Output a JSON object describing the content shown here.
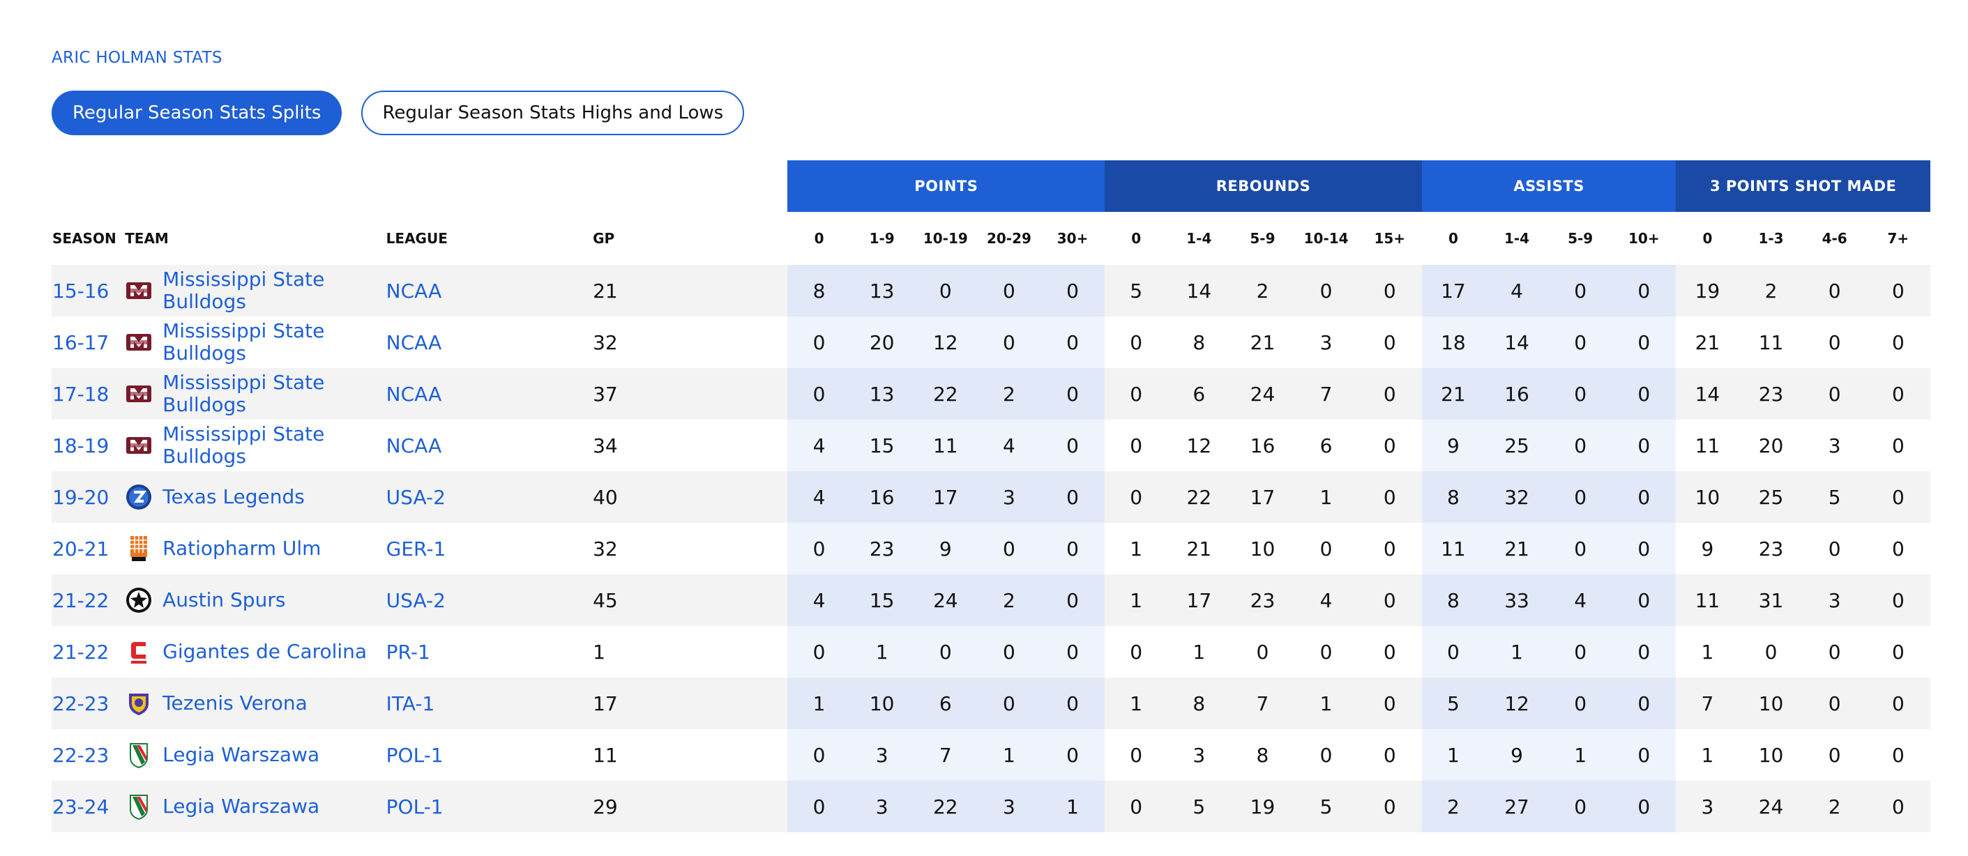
{
  "title": "ARIC HOLMAN STATS",
  "tabs": [
    {
      "label": "Regular Season Stats Splits",
      "active": true
    },
    {
      "label": "Regular Season Stats Highs and Lows",
      "active": false
    }
  ],
  "groups": {
    "points": "POINTS",
    "rebounds": "REBOUNDS",
    "assists": "ASSISTS",
    "threes": "3 POINTS SHOT MADE"
  },
  "columns": {
    "season": "SEASON",
    "team": "TEAM",
    "league": "LEAGUE",
    "gp": "GP",
    "points": [
      "0",
      "1-9",
      "10-19",
      "20-29",
      "30+"
    ],
    "rebounds": [
      "0",
      "1-4",
      "5-9",
      "10-14",
      "15+"
    ],
    "assists": [
      "0",
      "1-4",
      "5-9",
      "10+"
    ],
    "threes": [
      "0",
      "1-3",
      "4-6",
      "7+"
    ]
  },
  "colors": {
    "accent": "#1e5fd6",
    "accent_dark": "#1a4aa6",
    "row_alt": "#f3f3f3"
  },
  "rows": [
    {
      "season": "15-16",
      "team_line1": "Mississippi State",
      "team_line2": "Bulldogs",
      "logo": "mississippi-state-logo",
      "league": "NCAA",
      "gp": "21",
      "points": [
        "8",
        "13",
        "0",
        "0",
        "0"
      ],
      "rebounds": [
        "5",
        "14",
        "2",
        "0",
        "0"
      ],
      "assists": [
        "17",
        "4",
        "0",
        "0"
      ],
      "threes": [
        "19",
        "2",
        "0",
        "0"
      ]
    },
    {
      "season": "16-17",
      "team_line1": "Mississippi State",
      "team_line2": "Bulldogs",
      "logo": "mississippi-state-logo",
      "league": "NCAA",
      "gp": "32",
      "points": [
        "0",
        "20",
        "12",
        "0",
        "0"
      ],
      "rebounds": [
        "0",
        "8",
        "21",
        "3",
        "0"
      ],
      "assists": [
        "18",
        "14",
        "0",
        "0"
      ],
      "threes": [
        "21",
        "11",
        "0",
        "0"
      ]
    },
    {
      "season": "17-18",
      "team_line1": "Mississippi State",
      "team_line2": "Bulldogs",
      "logo": "mississippi-state-logo",
      "league": "NCAA",
      "gp": "37",
      "points": [
        "0",
        "13",
        "22",
        "2",
        "0"
      ],
      "rebounds": [
        "0",
        "6",
        "24",
        "7",
        "0"
      ],
      "assists": [
        "21",
        "16",
        "0",
        "0"
      ],
      "threes": [
        "14",
        "23",
        "0",
        "0"
      ]
    },
    {
      "season": "18-19",
      "team_line1": "Mississippi State",
      "team_line2": "Bulldogs",
      "logo": "mississippi-state-logo",
      "league": "NCAA",
      "gp": "34",
      "points": [
        "4",
        "15",
        "11",
        "4",
        "0"
      ],
      "rebounds": [
        "0",
        "12",
        "16",
        "6",
        "0"
      ],
      "assists": [
        "9",
        "25",
        "0",
        "0"
      ],
      "threes": [
        "11",
        "20",
        "3",
        "0"
      ]
    },
    {
      "season": "19-20",
      "team_line1": "Texas Legends",
      "team_line2": "",
      "logo": "texas-legends-logo",
      "league": "USA-2",
      "gp": "40",
      "points": [
        "4",
        "16",
        "17",
        "3",
        "0"
      ],
      "rebounds": [
        "0",
        "22",
        "17",
        "1",
        "0"
      ],
      "assists": [
        "8",
        "32",
        "0",
        "0"
      ],
      "threes": [
        "10",
        "25",
        "5",
        "0"
      ]
    },
    {
      "season": "20-21",
      "team_line1": "Ratiopharm Ulm",
      "team_line2": "",
      "logo": "ratiopharm-ulm-logo",
      "league": "GER-1",
      "gp": "32",
      "points": [
        "0",
        "23",
        "9",
        "0",
        "0"
      ],
      "rebounds": [
        "1",
        "21",
        "10",
        "0",
        "0"
      ],
      "assists": [
        "11",
        "21",
        "0",
        "0"
      ],
      "threes": [
        "9",
        "23",
        "0",
        "0"
      ]
    },
    {
      "season": "21-22",
      "team_line1": "Austin Spurs",
      "team_line2": "",
      "logo": "austin-spurs-logo",
      "league": "USA-2",
      "gp": "45",
      "points": [
        "4",
        "15",
        "24",
        "2",
        "0"
      ],
      "rebounds": [
        "1",
        "17",
        "23",
        "4",
        "0"
      ],
      "assists": [
        "8",
        "33",
        "4",
        "0"
      ],
      "threes": [
        "11",
        "31",
        "3",
        "0"
      ]
    },
    {
      "season": "21-22",
      "team_line1": "Gigantes de Carolina",
      "team_line2": "",
      "logo": "gigantes-de-carolina-logo",
      "league": "PR-1",
      "gp": "1",
      "points": [
        "0",
        "1",
        "0",
        "0",
        "0"
      ],
      "rebounds": [
        "0",
        "1",
        "0",
        "0",
        "0"
      ],
      "assists": [
        "0",
        "1",
        "0",
        "0"
      ],
      "threes": [
        "1",
        "0",
        "0",
        "0"
      ]
    },
    {
      "season": "22-23",
      "team_line1": "Tezenis Verona",
      "team_line2": "",
      "logo": "tezenis-verona-logo",
      "league": "ITA-1",
      "gp": "17",
      "points": [
        "1",
        "10",
        "6",
        "0",
        "0"
      ],
      "rebounds": [
        "1",
        "8",
        "7",
        "1",
        "0"
      ],
      "assists": [
        "5",
        "12",
        "0",
        "0"
      ],
      "threes": [
        "7",
        "10",
        "0",
        "0"
      ]
    },
    {
      "season": "22-23",
      "team_line1": "Legia Warszawa",
      "team_line2": "",
      "logo": "legia-warszawa-logo",
      "league": "POL-1",
      "gp": "11",
      "points": [
        "0",
        "3",
        "7",
        "1",
        "0"
      ],
      "rebounds": [
        "0",
        "3",
        "8",
        "0",
        "0"
      ],
      "assists": [
        "1",
        "9",
        "1",
        "0"
      ],
      "threes": [
        "1",
        "10",
        "0",
        "0"
      ]
    },
    {
      "season": "23-24",
      "team_line1": "Legia Warszawa",
      "team_line2": "",
      "logo": "legia-warszawa-logo",
      "league": "POL-1",
      "gp": "29",
      "points": [
        "0",
        "3",
        "22",
        "3",
        "1"
      ],
      "rebounds": [
        "0",
        "5",
        "19",
        "5",
        "0"
      ],
      "assists": [
        "2",
        "27",
        "0",
        "0"
      ],
      "threes": [
        "3",
        "24",
        "2",
        "0"
      ]
    }
  ]
}
